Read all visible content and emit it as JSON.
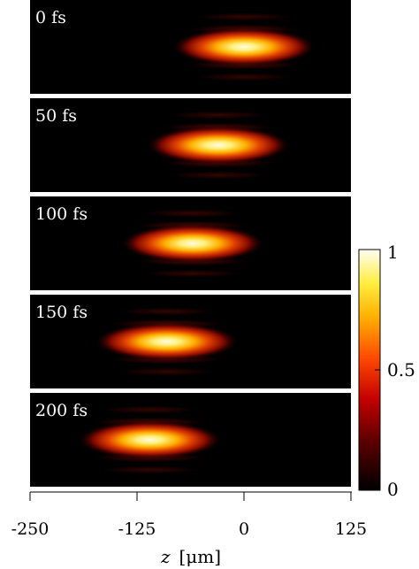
{
  "colors": {
    "background": "#000000",
    "pulse_core": "#fffbe0",
    "pulse_mid": "#ff8a00",
    "pulse_edge": "#b01000",
    "separator": "#ffffff"
  },
  "panels": [
    {
      "label": "0 fs",
      "center_um": 0
    },
    {
      "label": "50 fs",
      "center_um": -30
    },
    {
      "label": "100 fs",
      "center_um": -60
    },
    {
      "label": "150 fs",
      "center_um": -90
    },
    {
      "label": "200 fs",
      "center_um": -110
    }
  ],
  "x_axis": {
    "label_var": "z",
    "label_unit": "[μm]",
    "range": [
      -250,
      125
    ],
    "ticks": [
      "-250",
      "-125",
      "0",
      "125"
    ]
  },
  "colorbar": {
    "range": [
      0,
      1
    ],
    "ticks": [
      "1",
      "0.5",
      "0"
    ],
    "colormap": "hot"
  }
}
